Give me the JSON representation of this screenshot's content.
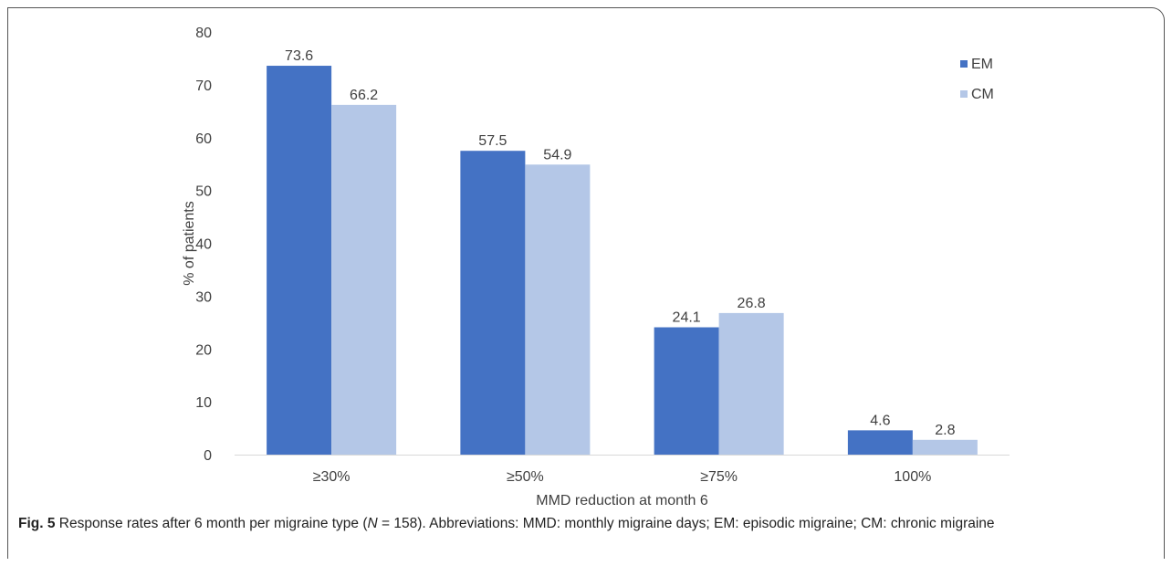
{
  "chart_data": {
    "type": "bar",
    "categories": [
      "≥30%",
      "≥50%",
      "≥75%",
      "100%"
    ],
    "series": [
      {
        "name": "EM",
        "values": [
          73.6,
          57.5,
          24.1,
          4.6
        ],
        "labels": [
          "73.6",
          "57.5",
          "24.1",
          "4.6"
        ],
        "color": "#4472c4"
      },
      {
        "name": "CM",
        "values": [
          66.2,
          54.9,
          26.8,
          2.8
        ],
        "labels": [
          "66.2",
          "54.9",
          "26.8",
          "2.8"
        ],
        "color": "#b4c7e7"
      }
    ],
    "xlabel": "MMD reduction at month 6",
    "ylabel": "% of patients",
    "ylim": [
      0,
      80
    ],
    "yticks": [
      "0",
      "10",
      "20",
      "30",
      "40",
      "50",
      "60",
      "70",
      "80"
    ],
    "grid": false,
    "legend": "top-right"
  },
  "caption": {
    "fig_label": "Fig. 5",
    "text_before_n": "Response rates after 6 month per migraine type (",
    "n_symbol": "N",
    "text_after_n": " = 158). Abbreviations: MMD: monthly migraine days; EM: episodic migraine; CM: chronic migraine"
  }
}
